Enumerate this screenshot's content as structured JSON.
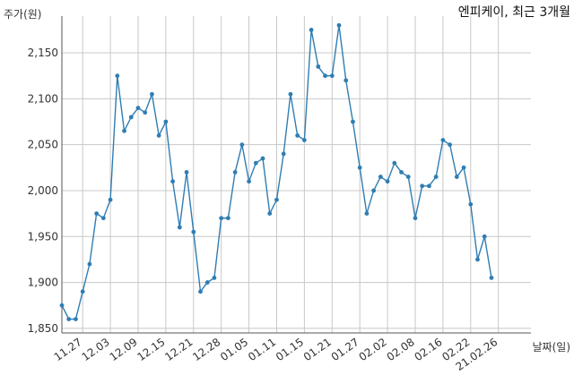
{
  "title": "엔피케이, 최근 3개월",
  "y_unit_label": "주가(원)",
  "x_unit_label": "날짜(일)",
  "colors": {
    "line": "#2f7db3",
    "grid": "#c8c8c8",
    "axis": "#555555"
  },
  "chart_data": {
    "type": "line",
    "title": "엔피케이, 최근 3개월",
    "xlabel": "날짜(일)",
    "ylabel": "주가(원)",
    "ylim": [
      1845,
      2190
    ],
    "grid": true,
    "yticks": [
      1850,
      1900,
      1950,
      2000,
      2050,
      2100,
      2150
    ],
    "ytick_labels": [
      "1,850",
      "1,900",
      "1,950",
      "2,000",
      "2,050",
      "2,100",
      "2,150"
    ],
    "xticks": [
      {
        "index": 3,
        "label": "11.27"
      },
      {
        "index": 7,
        "label": "12.03"
      },
      {
        "index": 11,
        "label": "12.09"
      },
      {
        "index": 15,
        "label": "12.15"
      },
      {
        "index": 19,
        "label": "12.21"
      },
      {
        "index": 23,
        "label": "12.28"
      },
      {
        "index": 27,
        "label": "01.05"
      },
      {
        "index": 31,
        "label": "01.11"
      },
      {
        "index": 35,
        "label": "01.15"
      },
      {
        "index": 39,
        "label": "01.21"
      },
      {
        "index": 43,
        "label": "01.27"
      },
      {
        "index": 47,
        "label": "02.02"
      },
      {
        "index": 51,
        "label": "02.08"
      },
      {
        "index": 55,
        "label": "02.16"
      },
      {
        "index": 59,
        "label": "02.22"
      },
      {
        "index": 63,
        "label": "21.02.26"
      }
    ],
    "series": [
      {
        "values": [
          1875,
          1860,
          1860,
          1890,
          1920,
          1975,
          1970,
          1990,
          2125,
          2065,
          2080,
          2090,
          2085,
          2105,
          2060,
          2075,
          2010,
          1960,
          2020,
          1955,
          1890,
          1900,
          1905,
          1970,
          1970,
          2020,
          2050,
          2010,
          2030,
          2035,
          1975,
          1990,
          2040,
          2105,
          2060,
          2055,
          2175,
          2135,
          2125,
          2125,
          2180,
          2120,
          2075,
          2025,
          1975,
          2000,
          2015,
          2010,
          2030,
          2020,
          2015,
          1970,
          2005,
          2005,
          2015,
          2055,
          2050,
          2015,
          2025,
          1985,
          1925,
          1950,
          1905
        ]
      }
    ]
  }
}
